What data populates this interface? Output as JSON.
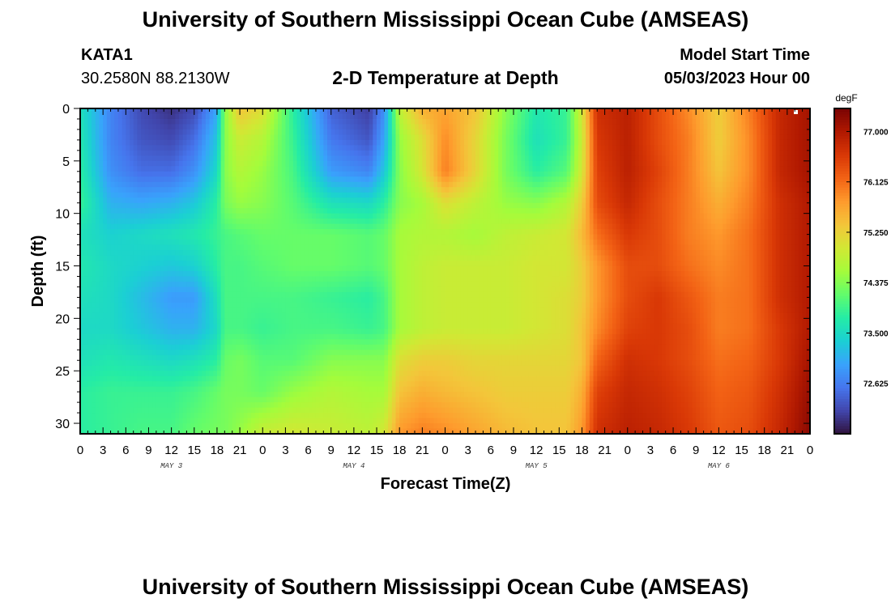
{
  "page": {
    "title": "University of Southern Mississippi Ocean Cube (AMSEAS)",
    "title_repeat": "University of Southern Mississippi Ocean Cube (AMSEAS)",
    "station": "KATA1",
    "coords": "30.2580N  88.2130W",
    "subtitle": "2-D Temperature at Depth",
    "model_label": "Model Start Time",
    "model_time": "05/03/2023 Hour 00"
  },
  "chart_data": {
    "type": "heatmap",
    "title": "2-D Temperature at Depth",
    "xlabel": "Forecast Time(Z)",
    "ylabel": "Depth (ft)",
    "x_range_hours": [
      0,
      96
    ],
    "x_tick_labels": [
      "0",
      "3",
      "6",
      "9",
      "12",
      "15",
      "18",
      "21",
      "0",
      "3",
      "6",
      "9",
      "12",
      "15",
      "18",
      "21",
      "0",
      "3",
      "6",
      "9",
      "12",
      "15",
      "18",
      "21",
      "0",
      "3",
      "6",
      "9",
      "12",
      "15",
      "18",
      "21",
      "0"
    ],
    "day_labels": [
      "MAY 3",
      "MAY 4",
      "MAY 5",
      "MAY 6"
    ],
    "y_range": [
      0,
      31
    ],
    "y_ticks": [
      0,
      5,
      10,
      15,
      20,
      25,
      30
    ],
    "colorbar": {
      "unit": "degF",
      "range": [
        71.75,
        77.4
      ],
      "ticks": [
        77.0,
        76.125,
        75.25,
        74.375,
        73.5,
        72.625
      ],
      "tick_labels": [
        "77.000",
        "76.125",
        "75.250",
        "74.375",
        "73.500",
        "72.625"
      ],
      "colors": [
        "#30123b",
        "#4145ab",
        "#4675ed",
        "#39a2fc",
        "#1bcfd4",
        "#24eca6",
        "#61fc6c",
        "#a4fc3b",
        "#d1e834",
        "#f3c63a",
        "#fe9b2d",
        "#f36315",
        "#d93806",
        "#b11901",
        "#7a0403"
      ]
    },
    "heat_depths_ft": [
      0,
      3,
      6,
      9,
      12,
      15,
      18,
      21,
      24,
      27,
      31
    ],
    "heat_times_h": [
      0,
      4,
      8,
      12,
      15,
      18,
      19,
      21,
      24,
      28,
      33,
      38,
      40,
      42,
      45,
      48,
      52,
      56,
      60,
      64,
      66,
      68,
      72,
      76,
      80,
      84,
      88,
      92,
      96
    ],
    "heat_values_degF": [
      [
        73.6,
        72.7,
        72.2,
        72.0,
        72.2,
        73.0,
        74.4,
        75.4,
        75.1,
        73.8,
        72.4,
        72.1,
        72.8,
        74.8,
        75.6,
        75.7,
        75.4,
        74.4,
        73.7,
        73.9,
        75.0,
        76.7,
        76.9,
        76.4,
        75.9,
        75.3,
        76.0,
        76.8,
        77.1
      ],
      [
        73.7,
        72.7,
        72.3,
        72.2,
        72.5,
        73.3,
        74.4,
        74.9,
        74.7,
        73.9,
        72.6,
        72.3,
        73.0,
        74.5,
        75.1,
        75.9,
        75.2,
        74.3,
        73.6,
        73.9,
        74.9,
        76.6,
        76.9,
        76.4,
        76.0,
        75.3,
        75.9,
        76.8,
        77.1
      ],
      [
        73.8,
        72.8,
        72.5,
        72.5,
        72.8,
        73.5,
        74.4,
        74.7,
        74.5,
        74.0,
        72.9,
        72.7,
        73.3,
        74.4,
        75.0,
        76.0,
        75.2,
        74.3,
        73.8,
        74.1,
        75.0,
        76.5,
        76.9,
        76.5,
        76.0,
        75.4,
        75.9,
        76.8,
        77.1
      ],
      [
        73.9,
        73.1,
        73.0,
        73.1,
        73.3,
        73.8,
        74.3,
        74.5,
        74.4,
        74.1,
        73.6,
        73.5,
        73.8,
        74.4,
        74.6,
        75.1,
        74.8,
        74.5,
        74.4,
        74.7,
        75.3,
        76.4,
        76.8,
        76.4,
        76.0,
        75.6,
        76.0,
        76.7,
        77.0
      ],
      [
        73.6,
        73.4,
        73.5,
        73.6,
        73.7,
        73.9,
        74.0,
        74.1,
        74.2,
        74.2,
        74.2,
        74.1,
        74.2,
        74.6,
        74.7,
        74.7,
        74.6,
        74.8,
        74.9,
        75.0,
        75.5,
        76.1,
        76.6,
        76.4,
        76.0,
        75.8,
        76.1,
        76.7,
        77.0
      ],
      [
        73.7,
        73.5,
        73.4,
        73.3,
        73.4,
        73.8,
        74.0,
        74.0,
        74.1,
        74.2,
        74.2,
        74.1,
        74.2,
        74.6,
        74.8,
        74.9,
        74.9,
        74.9,
        75.0,
        75.0,
        75.3,
        75.8,
        76.4,
        76.4,
        76.1,
        75.9,
        76.1,
        76.7,
        77.0
      ],
      [
        73.6,
        73.5,
        73.2,
        72.9,
        72.9,
        73.6,
        74.0,
        74.0,
        74.0,
        74.0,
        73.9,
        73.8,
        74.0,
        74.6,
        74.8,
        74.9,
        74.9,
        74.9,
        75.0,
        75.1,
        75.3,
        75.8,
        76.4,
        76.6,
        76.3,
        76.0,
        76.1,
        76.7,
        77.0
      ],
      [
        73.5,
        73.5,
        73.3,
        73.1,
        73.1,
        73.5,
        74.0,
        74.0,
        73.9,
        74.0,
        74.0,
        73.9,
        74.0,
        74.6,
        74.8,
        74.9,
        74.9,
        74.9,
        75.0,
        75.1,
        75.4,
        75.9,
        76.5,
        76.6,
        76.4,
        76.0,
        76.1,
        76.6,
        77.0
      ],
      [
        73.6,
        73.7,
        73.6,
        73.5,
        73.6,
        73.8,
        74.2,
        74.3,
        74.1,
        74.1,
        74.4,
        74.4,
        74.4,
        75.1,
        75.3,
        75.3,
        75.2,
        75.2,
        75.2,
        75.2,
        75.4,
        76.2,
        76.7,
        76.6,
        76.4,
        76.1,
        76.2,
        76.6,
        77.1
      ],
      [
        73.8,
        73.9,
        73.9,
        73.9,
        74.0,
        74.2,
        74.3,
        74.3,
        74.2,
        74.5,
        74.7,
        74.6,
        74.6,
        75.4,
        75.6,
        75.5,
        75.4,
        75.3,
        75.3,
        75.3,
        75.6,
        76.5,
        76.8,
        76.7,
        76.5,
        76.2,
        76.3,
        76.7,
        77.2
      ],
      [
        73.8,
        73.9,
        74.0,
        74.0,
        74.2,
        74.3,
        74.3,
        74.5,
        74.9,
        75.0,
        74.9,
        74.8,
        75.0,
        75.8,
        76.0,
        75.9,
        75.7,
        75.5,
        75.4,
        75.4,
        75.8,
        76.7,
        76.9,
        76.8,
        76.6,
        76.3,
        76.4,
        76.8,
        77.3
      ]
    ]
  }
}
